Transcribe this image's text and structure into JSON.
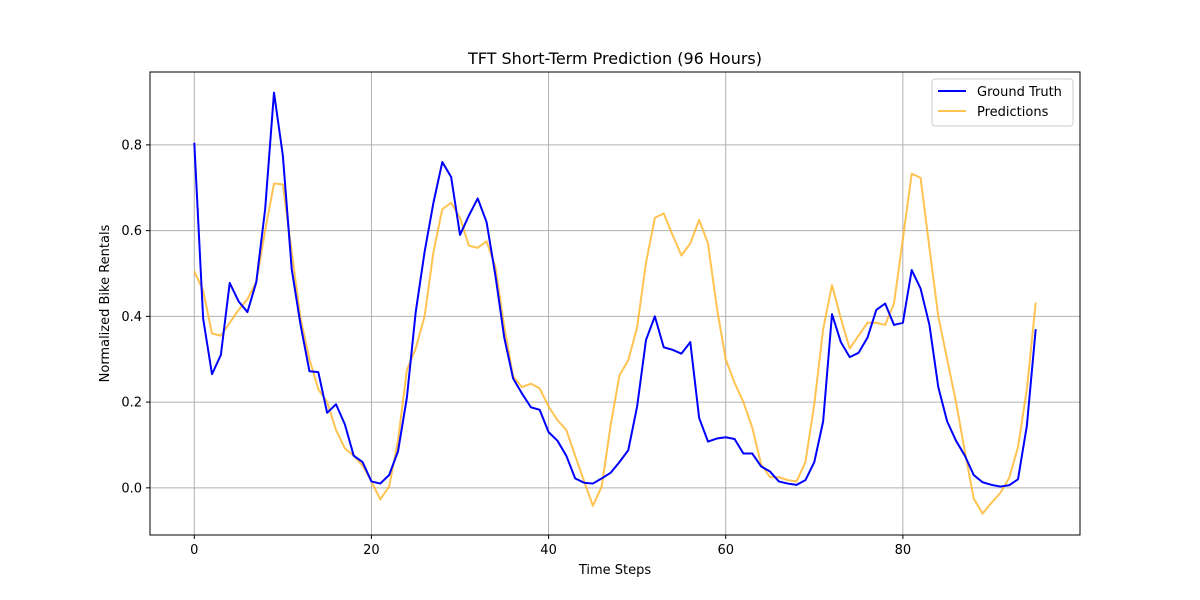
{
  "chart_data": {
    "type": "line",
    "title": "TFT Short-Term Prediction (96 Hours)",
    "xlabel": "Time Steps",
    "ylabel": "Normalized Bike Rentals",
    "xlim": [
      -5,
      100
    ],
    "ylim": [
      -0.11,
      0.97
    ],
    "xticks": [
      0,
      20,
      40,
      60,
      80
    ],
    "yticks": [
      0.0,
      0.2,
      0.4,
      0.6,
      0.8
    ],
    "xtick_labels": [
      "0",
      "20",
      "40",
      "60",
      "80"
    ],
    "ytick_labels": [
      "0.0",
      "0.2",
      "0.4",
      "0.6",
      "0.8"
    ],
    "grid": true,
    "legend_position": "top-right",
    "series": [
      {
        "name": "Ground Truth",
        "color": "#0000ff",
        "values": [
          0.805,
          0.395,
          0.265,
          0.31,
          0.478,
          0.435,
          0.41,
          0.48,
          0.65,
          0.922,
          0.775,
          0.51,
          0.38,
          0.272,
          0.27,
          0.175,
          0.195,
          0.148,
          0.075,
          0.06,
          0.015,
          0.01,
          0.03,
          0.085,
          0.21,
          0.41,
          0.55,
          0.665,
          0.76,
          0.725,
          0.59,
          0.635,
          0.675,
          0.62,
          0.495,
          0.35,
          0.255,
          0.22,
          0.188,
          0.182,
          0.13,
          0.11,
          0.075,
          0.022,
          0.012,
          0.01,
          0.022,
          0.035,
          0.06,
          0.088,
          0.19,
          0.345,
          0.4,
          0.328,
          0.322,
          0.313,
          0.34,
          0.163,
          0.108,
          0.115,
          0.118,
          0.114,
          0.08,
          0.08,
          0.05,
          0.038,
          0.015,
          0.01,
          0.007,
          0.018,
          0.06,
          0.155,
          0.405,
          0.34,
          0.305,
          0.315,
          0.35,
          0.415,
          0.43,
          0.38,
          0.385,
          0.508,
          0.465,
          0.38,
          0.235,
          0.155,
          0.11,
          0.075,
          0.03,
          0.013,
          0.007,
          0.003,
          0.006,
          0.02,
          0.145,
          0.37
        ]
      },
      {
        "name": "Predictions",
        "color": "#ffb833",
        "values": [
          0.505,
          0.46,
          0.36,
          0.355,
          0.385,
          0.415,
          0.44,
          0.48,
          0.6,
          0.71,
          0.708,
          0.55,
          0.395,
          0.3,
          0.23,
          0.2,
          0.135,
          0.092,
          0.075,
          0.052,
          0.015,
          -0.027,
          0.003,
          0.11,
          0.275,
          0.325,
          0.4,
          0.55,
          0.65,
          0.665,
          0.63,
          0.565,
          0.56,
          0.575,
          0.515,
          0.375,
          0.26,
          0.235,
          0.243,
          0.232,
          0.19,
          0.158,
          0.135,
          0.075,
          0.016,
          -0.042,
          0.003,
          0.145,
          0.262,
          0.298,
          0.375,
          0.525,
          0.63,
          0.64,
          0.59,
          0.542,
          0.57,
          0.625,
          0.57,
          0.42,
          0.3,
          0.245,
          0.2,
          0.14,
          0.055,
          0.025,
          0.025,
          0.018,
          0.015,
          0.06,
          0.195,
          0.37,
          0.473,
          0.395,
          0.325,
          0.355,
          0.385,
          0.385,
          0.38,
          0.43,
          0.58,
          0.733,
          0.723,
          0.56,
          0.4,
          0.3,
          0.2,
          0.085,
          -0.025,
          -0.06,
          -0.035,
          -0.012,
          0.023,
          0.095,
          0.23,
          0.432
        ]
      }
    ]
  }
}
